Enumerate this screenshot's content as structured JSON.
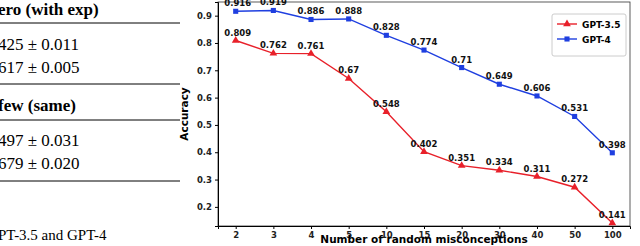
{
  "chart_data": {
    "type": "line",
    "x_label": "Number of random misconceptions",
    "y_label": "Accuracy",
    "categories": [
      "2",
      "3",
      "4",
      "5",
      "10",
      "15",
      "20",
      "30",
      "40",
      "50",
      "100"
    ],
    "series": [
      {
        "name": "GPT-3.5",
        "color": "#e8202a",
        "marker": "triangle",
        "line_style": "solid",
        "values": [
          0.809,
          0.762,
          0.761,
          0.67,
          0.548,
          0.402,
          0.351,
          0.334,
          0.311,
          0.272,
          0.141
        ]
      },
      {
        "name": "GPT-4",
        "color": "#1f3fe0",
        "marker": "square",
        "line_style": "solid",
        "values": [
          0.916,
          0.919,
          0.886,
          0.888,
          0.828,
          0.774,
          0.71,
          0.649,
          0.606,
          0.531,
          0.398
        ]
      }
    ],
    "ylim": [
      0.13,
      0.95
    ],
    "yticks": [
      0.2,
      0.3,
      0.4,
      0.5,
      0.6,
      0.7,
      0.8,
      0.9
    ],
    "grid": false,
    "legend": "upper right",
    "data_labels": true
  },
  "table": {
    "header_1": "ero (with exp)",
    "rows_1": [
      "425 ± 0.011",
      "617 ± 0.005"
    ],
    "header_2": "few (same)",
    "rows_2": [
      "497 ± 0.031",
      "679 ± 0.020"
    ],
    "caption": "PT-3.5 and GPT-4"
  }
}
